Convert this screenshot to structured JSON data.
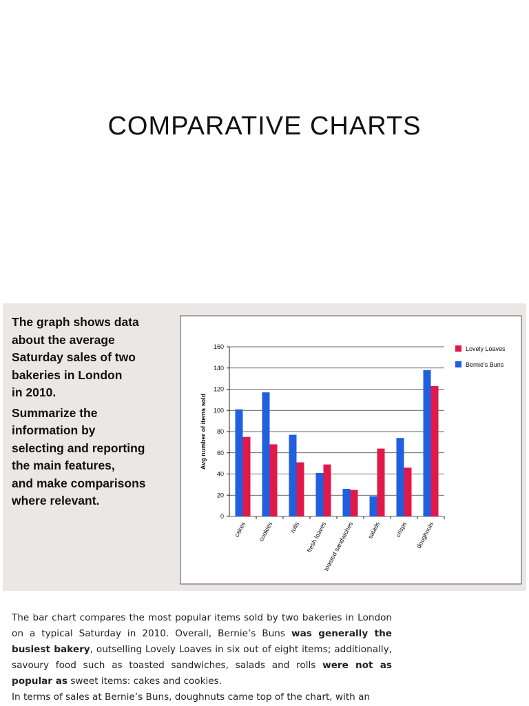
{
  "title": "COMPARATIVE CHARTS",
  "prompt": [
    "The graph shows data",
    "about the average",
    "Saturday sales of two",
    "bakeries in London",
    "in 2010.",
    "Summarize the",
    "information by",
    "selecting and reporting",
    "the main features,",
    "and make comparisons",
    "where relevant."
  ],
  "chart_data": {
    "type": "bar",
    "y_label": "Avg number of items sold",
    "categories": [
      "cakes",
      "cookies",
      "rolls",
      "fresh loaves",
      "toasted sandwiches",
      "salads",
      "crisps",
      "doughnuts"
    ],
    "series": [
      {
        "name": "Bernie's Buns",
        "color": "#1f5fe0",
        "values": [
          101,
          117,
          77,
          41,
          26,
          19,
          74,
          138
        ]
      },
      {
        "name": "Lovely Loaves",
        "color": "#e0194a",
        "values": [
          75,
          68,
          51,
          49,
          25,
          64,
          46,
          123
        ]
      }
    ],
    "ylim": [
      0,
      160
    ],
    "yticks": [
      0,
      20,
      40,
      60,
      80,
      100,
      120,
      140,
      160
    ],
    "grid": true,
    "legend": "right"
  },
  "paragraphs": [
    {
      "segments": [
        {
          "text": "The bar chart compares the most popular items sold by two bakeries in London on a typical Saturday in 2010. Overall, Bernie’s Buns ",
          "bold": false
        },
        {
          "text": "was generally the busiest bakery",
          "bold": true
        },
        {
          "text": ", outselling Lovely Loaves in six out of eight items; additionally, savoury food such as toasted sandwiches, salads and rolls ",
          "bold": false
        },
        {
          "text": "were not as popular as",
          "bold": true
        },
        {
          "text": " sweet items: cakes and cookies.",
          "bold": false
        }
      ]
    },
    {
      "segments": [
        {
          "text": "In terms of sales at Bernie’s Buns, doughnuts came top of the chart, with an",
          "bold": false
        }
      ]
    }
  ]
}
